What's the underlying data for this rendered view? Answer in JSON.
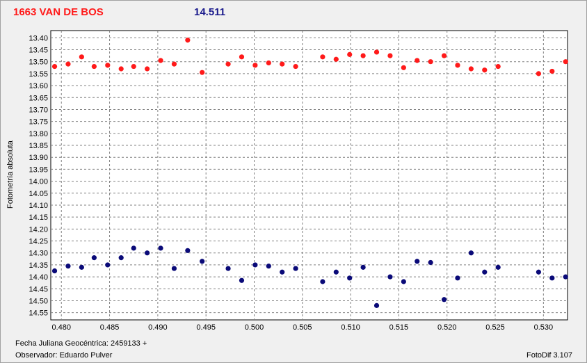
{
  "header": {
    "object_name": "1663 VAN DE BOS",
    "reference_value": "14.511"
  },
  "footer": {
    "date_label": "Fecha Juliana Geocéntrica: 2459133 +",
    "observer_label": "Observador: Eduardo Pulver",
    "software": "FotoDif 3.107"
  },
  "colors": {
    "series_red": "#ff1a1a",
    "series_blue": "#0a0a78",
    "grid": "#808080",
    "plot_bg": "#ffffff"
  },
  "chart_data": {
    "type": "scatter",
    "title": "1663 VAN DE BOS",
    "subtitle": "14.511",
    "xlabel": "Fecha Juliana Geocéntrica: 2459133 +",
    "ylabel": "Fotometría absoluta",
    "xlim": [
      0.4789,
      0.5325
    ],
    "ylim": [
      13.37,
      14.58
    ],
    "y_inverted": true,
    "grid": true,
    "x_ticks": [
      "0.480",
      "0.485",
      "0.490",
      "0.495",
      "0.500",
      "0.505",
      "0.510",
      "0.515",
      "0.520",
      "0.525",
      "0.530"
    ],
    "x_tick_values": [
      0.48,
      0.485,
      0.49,
      0.495,
      0.5,
      0.505,
      0.51,
      0.515,
      0.52,
      0.525,
      0.53
    ],
    "y_ticks": [
      "13.40",
      "13.45",
      "13.50",
      "13.55",
      "13.60",
      "13.65",
      "13.70",
      "13.75",
      "13.80",
      "13.85",
      "13.90",
      "13.95",
      "14.00",
      "14.05",
      "14.10",
      "14.15",
      "14.20",
      "14.25",
      "14.30",
      "14.35",
      "14.40",
      "14.45",
      "14.50",
      "14.55"
    ],
    "y_tick_values": [
      13.4,
      13.45,
      13.5,
      13.55,
      13.6,
      13.65,
      13.7,
      13.75,
      13.8,
      13.85,
      13.9,
      13.95,
      14.0,
      14.05,
      14.1,
      14.15,
      14.2,
      14.25,
      14.3,
      14.35,
      14.4,
      14.45,
      14.5,
      14.55
    ],
    "series": [
      {
        "color": "#ff1a1a",
        "x": [
          0.4793,
          0.4807,
          0.4821,
          0.4834,
          0.4848,
          0.4862,
          0.4875,
          0.4889,
          0.4903,
          0.4917,
          0.4931,
          0.4946,
          0.4973,
          0.4987,
          0.5001,
          0.5015,
          0.5029,
          0.5043,
          0.5071,
          0.5085,
          0.5099,
          0.5113,
          0.5127,
          0.5141,
          0.5155,
          0.5169,
          0.5183,
          0.5197,
          0.5211,
          0.5225,
          0.5239,
          0.5253,
          0.5295,
          0.5309,
          0.5323
        ],
        "y": [
          13.52,
          13.51,
          13.48,
          13.52,
          13.515,
          13.53,
          13.52,
          13.53,
          13.495,
          13.51,
          13.41,
          13.545,
          13.51,
          13.48,
          13.515,
          13.505,
          13.51,
          13.52,
          13.48,
          13.49,
          13.47,
          13.475,
          13.46,
          13.475,
          13.525,
          13.495,
          13.5,
          13.475,
          13.515,
          13.53,
          13.535,
          13.52,
          13.55,
          13.54,
          13.5
        ]
      },
      {
        "color": "#0a0a78",
        "x": [
          0.4793,
          0.4807,
          0.4821,
          0.4834,
          0.4848,
          0.4862,
          0.4875,
          0.4889,
          0.4903,
          0.4917,
          0.4931,
          0.4946,
          0.4973,
          0.4987,
          0.5001,
          0.5015,
          0.5029,
          0.5043,
          0.5071,
          0.5085,
          0.5099,
          0.5113,
          0.5127,
          0.5141,
          0.5155,
          0.5169,
          0.5183,
          0.5197,
          0.5211,
          0.5225,
          0.5239,
          0.5253,
          0.5295,
          0.5309,
          0.5323
        ],
        "y": [
          14.375,
          14.355,
          14.36,
          14.32,
          14.35,
          14.32,
          14.28,
          14.3,
          14.28,
          14.365,
          14.29,
          14.335,
          14.365,
          14.415,
          14.35,
          14.355,
          14.38,
          14.365,
          14.42,
          14.38,
          14.405,
          14.36,
          14.52,
          14.4,
          14.42,
          14.335,
          14.34,
          14.495,
          14.405,
          14.3,
          14.38,
          14.36,
          14.38,
          14.405,
          14.4
        ]
      }
    ]
  }
}
